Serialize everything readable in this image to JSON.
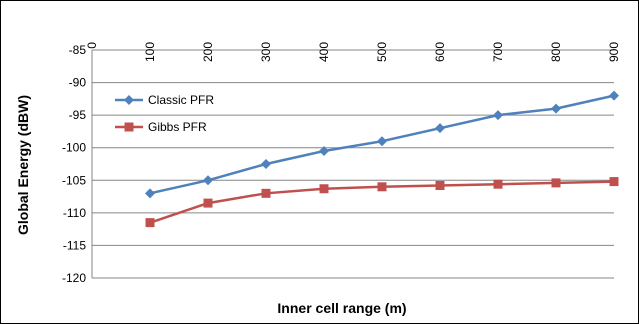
{
  "chart_data": {
    "type": "line",
    "xlabel": "Inner cell range (m)",
    "ylabel": "Global Energy (dBW)",
    "x": [
      100,
      200,
      300,
      400,
      500,
      600,
      700,
      800,
      900
    ],
    "x_ticks": [
      0,
      100,
      200,
      300,
      400,
      500,
      600,
      700,
      800,
      900
    ],
    "xlim": [
      0,
      900
    ],
    "ylim": [
      -120,
      -85
    ],
    "y_ticks": [
      -85,
      -90,
      -95,
      -100,
      -105,
      -110,
      -115,
      -120
    ],
    "grid": "horizontal",
    "x_axis_position": "top",
    "legend_position": "left",
    "series": [
      {
        "name": "Classic PFR",
        "color": "#4F81BD",
        "marker": "diamond",
        "values": [
          -107,
          -105,
          -102.5,
          -100.5,
          -99,
          -97,
          -95,
          -94,
          -92
        ]
      },
      {
        "name": "Gibbs PFR",
        "color": "#C0504D",
        "marker": "square",
        "values": [
          -111.5,
          -108.5,
          -107,
          -106.3,
          -106,
          -105.8,
          -105.6,
          -105.4,
          -105.2
        ]
      }
    ]
  }
}
